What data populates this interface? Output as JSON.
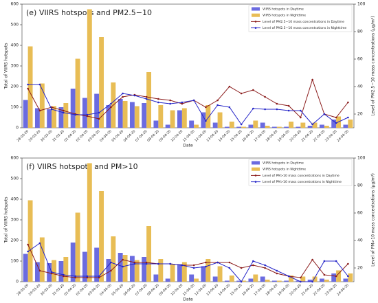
{
  "chart_data": [
    {
      "type": "bar_line",
      "title": "(e) VIIRS hotspots and PM2.5−10",
      "x_label": "Date",
      "y_label": "Total of VIIRS hotspots",
      "y2_label": "Level of PM2.5−10 mass concentrations (μg/m³)",
      "categories": [
        "28-03-20",
        "29-03-20",
        "30-03-20",
        "31-03-20",
        "01-04-20",
        "02-04-20",
        "03-04-20",
        "04-04-20",
        "05-04-20",
        "06-04-20",
        "07-04-20",
        "08-04-20",
        "09-04-20",
        "10-04-20",
        "11-04-20",
        "12-04-20",
        "13-04-20",
        "14-04-20",
        "15-04-20",
        "16-04-20",
        "17-04-20",
        "18-04-20",
        "19-04-20",
        "20-04-20",
        "21-04-20",
        "22-04-20",
        "23-04-20",
        "24-04-20"
      ],
      "ylim": [
        0,
        600
      ],
      "yticks": [
        0,
        100,
        200,
        300,
        400,
        500,
        600
      ],
      "y2lim": [
        10,
        100
      ],
      "y2ticks": [
        20,
        40,
        60,
        80,
        100
      ],
      "legend": "upper right",
      "series": [
        {
          "name": "VIIRS hotspots in Daytime",
          "kind": "bar",
          "color": "#6b6be0",
          "values": [
            135,
            95,
            90,
            100,
            190,
            145,
            165,
            110,
            140,
            125,
            120,
            35,
            15,
            85,
            35,
            75,
            25,
            5,
            5,
            15,
            25,
            5,
            5,
            5,
            10,
            15,
            40,
            15
          ]
        },
        {
          "name": "VIIRS hotspots in Nighttime",
          "kind": "bar",
          "color": "#e8bd55",
          "values": [
            395,
            215,
            105,
            120,
            335,
            575,
            440,
            220,
            130,
            105,
            270,
            110,
            85,
            95,
            15,
            110,
            75,
            30,
            5,
            35,
            10,
            5,
            30,
            25,
            25,
            10,
            55,
            40
          ]
        },
        {
          "name": "Level of PM2.5−10 mass concentrations in Daytime",
          "kind": "line",
          "axis": "y2",
          "color": "#8b1c1c",
          "values": [
            38.5,
            22.5,
            25,
            22.5,
            20,
            18.5,
            16.5,
            25,
            32.5,
            34,
            32.5,
            31,
            30,
            27.5,
            30,
            25,
            30,
            40,
            35,
            37.5,
            32.5,
            27.5,
            26,
            17.5,
            45,
            20,
            17.5,
            28.5
          ]
        },
        {
          "name": "Level of PM2.5−10 mass concentrations in Nighttime",
          "kind": "line",
          "axis": "y2",
          "color": "#2424c8",
          "values": [
            41.5,
            41.5,
            23.5,
            21,
            19.5,
            19.5,
            21,
            27.5,
            35,
            33.5,
            31,
            28.5,
            27.5,
            28.5,
            30,
            15,
            26.5,
            25,
            12.5,
            24,
            23.5,
            23.5,
            22.5,
            22.5,
            12.5,
            20,
            13.5,
            17.5
          ]
        }
      ]
    },
    {
      "type": "bar_line",
      "title": "(f) VIIRS hotspots and PM>10",
      "x_label": "Date",
      "y_label": "Total of VIIRS hotspots",
      "y2_label": "Level of PM>10 mass concentrations (μg/m³)",
      "categories": [
        "28-03-20",
        "29-03-20",
        "30-03-20",
        "31-03-20",
        "01-04-20",
        "02-04-20",
        "03-04-20",
        "04-04-20",
        "05-04-20",
        "06-04-20",
        "07-04-20",
        "08-04-20",
        "09-04-20",
        "10-04-20",
        "11-04-20",
        "12-04-20",
        "13-04-20",
        "14-04-20",
        "15-04-20",
        "16-04-20",
        "17-04-20",
        "18-04-20",
        "19-04-20",
        "20-04-20",
        "21-04-20",
        "22-04-20",
        "23-04-20",
        "24-04-20"
      ],
      "ylim": [
        0,
        600
      ],
      "yticks": [
        0,
        100,
        200,
        300,
        400,
        500,
        600
      ],
      "y2lim": [
        10,
        100
      ],
      "y2ticks": [
        20,
        40,
        60,
        80,
        100
      ],
      "legend": "upper right",
      "series": [
        {
          "name": "VIIRS hotspots in Daytime",
          "kind": "bar",
          "color": "#6b6be0",
          "values": [
            135,
            95,
            90,
            100,
            190,
            145,
            165,
            110,
            140,
            125,
            120,
            35,
            15,
            85,
            35,
            75,
            25,
            5,
            5,
            15,
            25,
            5,
            5,
            5,
            10,
            15,
            40,
            15
          ]
        },
        {
          "name": "VIIRS hotspots in Nighttime",
          "kind": "bar",
          "color": "#e8bd55",
          "values": [
            395,
            215,
            105,
            120,
            335,
            575,
            440,
            220,
            130,
            105,
            270,
            110,
            85,
            95,
            15,
            110,
            75,
            30,
            5,
            35,
            10,
            5,
            30,
            25,
            25,
            10,
            55,
            40
          ]
        },
        {
          "name": "Level of PM>10 mass concentrations in Daytime",
          "kind": "line",
          "axis": "y2",
          "color": "#8b1c1c",
          "values": [
            37,
            18,
            16,
            14,
            13,
            13,
            13,
            18,
            26,
            24,
            24,
            23,
            23,
            22,
            22,
            24,
            24,
            24,
            20,
            22,
            20,
            16,
            14,
            13,
            26,
            15,
            14,
            23
          ]
        },
        {
          "name": "Level of PM>10 mass concentrations in Nighttime",
          "kind": "line",
          "axis": "y2",
          "color": "#2424c8",
          "values": [
            32,
            38,
            17,
            15,
            14,
            14,
            14,
            24,
            21,
            23,
            23,
            23,
            23,
            22,
            20,
            21,
            24,
            20,
            10,
            25,
            22,
            18,
            14,
            10,
            10,
            25,
            25,
            14
          ]
        }
      ]
    }
  ]
}
